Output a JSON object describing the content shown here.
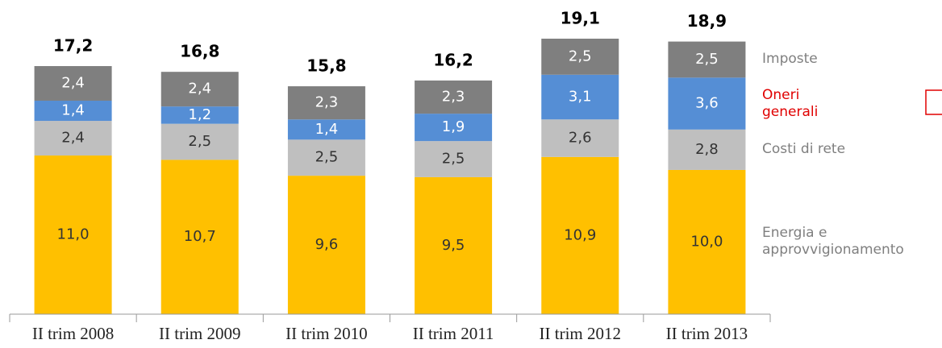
{
  "chart_data": {
    "type": "stacked-bar",
    "categories": [
      "II trim 2008",
      "II trim 2009",
      "II trim 2010",
      "II trim 2011",
      "II trim 2012",
      "II trim 2013"
    ],
    "series": [
      {
        "name": "Energia e approvvigionamento",
        "color": "#ffc000",
        "legend_color": "#7f7f7f",
        "label_color": "#333333",
        "values": [
          11.0,
          10.7,
          9.6,
          9.5,
          10.9,
          10.0
        ],
        "value_labels": [
          "11,0",
          "10,7",
          "9,6",
          "9,5",
          "10,9",
          "10,0"
        ]
      },
      {
        "name": "Costi di rete",
        "color": "#bfbfbf",
        "legend_color": "#7f7f7f",
        "label_color": "#333333",
        "values": [
          2.4,
          2.5,
          2.5,
          2.5,
          2.6,
          2.8
        ],
        "value_labels": [
          "2,4",
          "2,5",
          "2,5",
          "2,5",
          "2,6",
          "2,8"
        ]
      },
      {
        "name": "Oneri generali",
        "color": "#558ed5",
        "legend_color": "#e00000",
        "label_color": "#ffffff",
        "values": [
          1.4,
          1.2,
          1.4,
          1.9,
          3.1,
          3.6
        ],
        "value_labels": [
          "1,4",
          "1,2",
          "1,4",
          "1,9",
          "3,1",
          "3,6"
        ]
      },
      {
        "name": "Imposte",
        "color": "#7f7f7f",
        "legend_color": "#7f7f7f",
        "label_color": "#ffffff",
        "values": [
          2.4,
          2.4,
          2.3,
          2.3,
          2.5,
          2.5
        ],
        "value_labels": [
          "2,4",
          "2,4",
          "2,3",
          "2,3",
          "2,5",
          "2,5"
        ]
      }
    ],
    "totals": [
      17.2,
      16.8,
      15.8,
      16.2,
      19.1,
      18.9
    ],
    "total_labels": [
      "17,2",
      "16,8",
      "15,8",
      "16,2",
      "19,1",
      "18,9"
    ]
  }
}
